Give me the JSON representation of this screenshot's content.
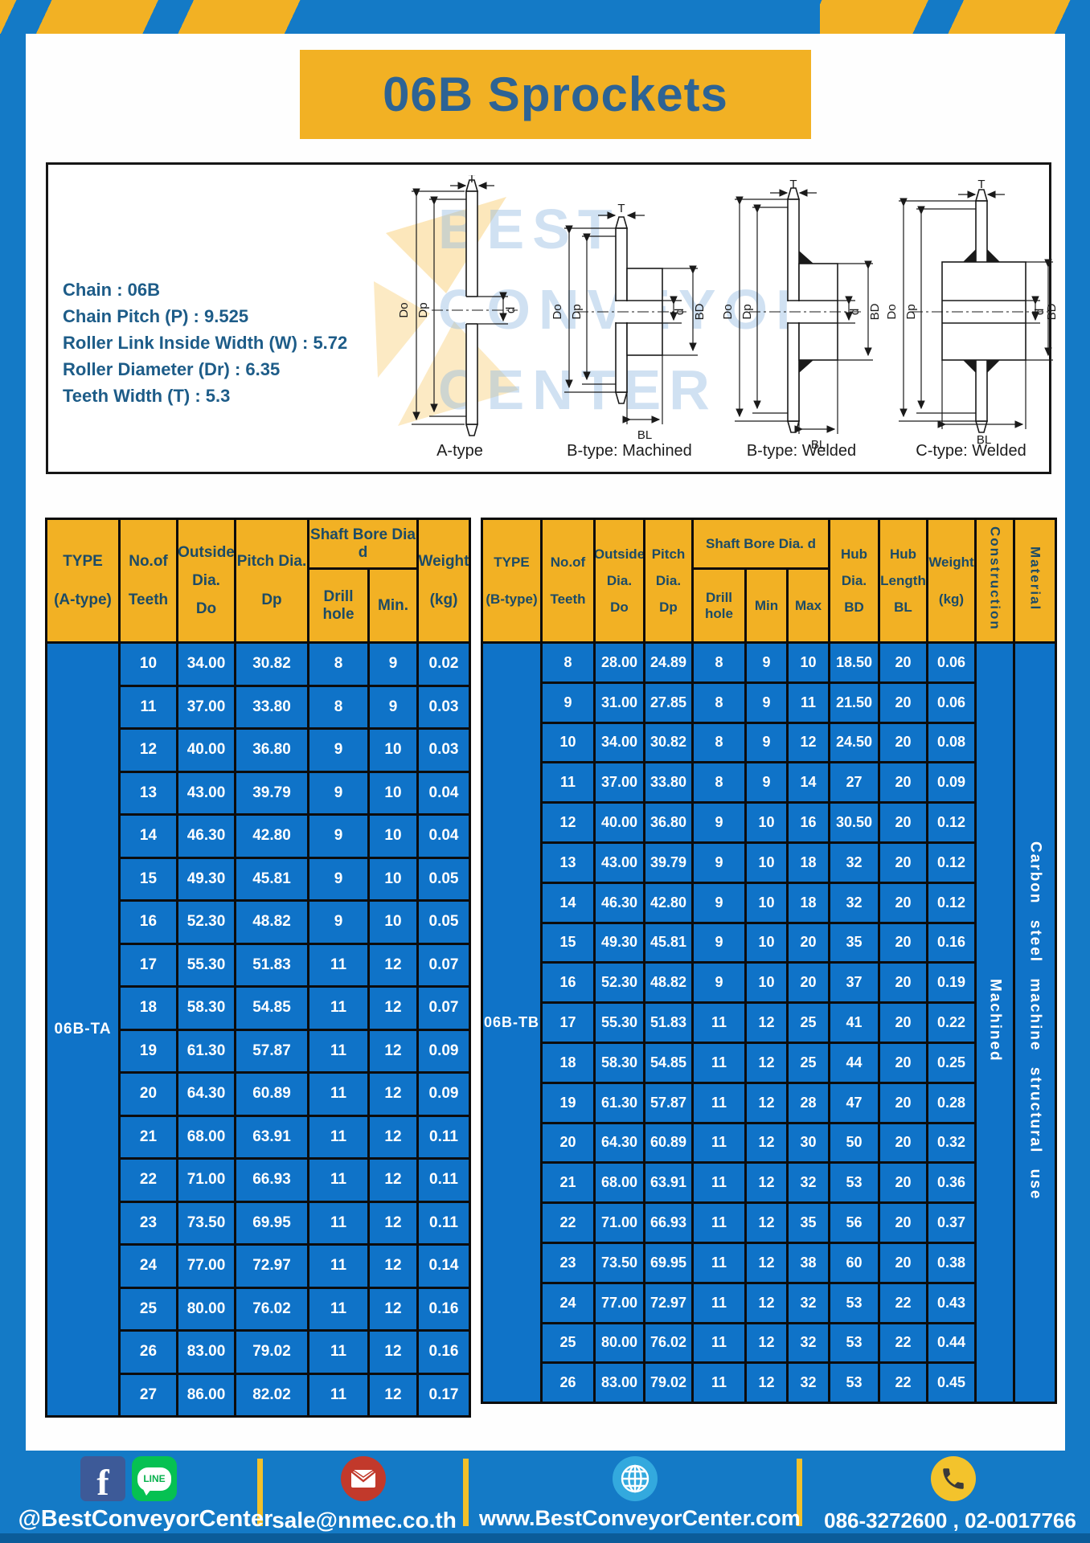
{
  "title": "06B Sprockets",
  "specs": [
    "Chain  : 06B",
    "Chain Pitch (P)  :  9.525",
    "Roller Link Inside Width (W)  :  5.72",
    "Roller Diameter (Dr)  : 6.35",
    "Teeth Width (T)  :  5.3"
  ],
  "diagrams": {
    "watermark_lines": [
      "BEST",
      "CONVEYOR",
      "CENTER"
    ],
    "labels": [
      "A-type",
      "B-type: Machined",
      "B-type: Welded",
      "C-type: Welded"
    ],
    "dims": {
      "t": "T",
      "outer": "Do",
      "pitch": "Dp",
      "bore": "d",
      "hub_dia": "BD",
      "hub_len": "BL"
    }
  },
  "tables": {
    "a": {
      "header": {
        "type1": "TYPE",
        "type2": "(A-type)",
        "teeth1": "No.of",
        "teeth2": "Teeth",
        "out1": "Outside",
        "out2": "Dia.",
        "out3": "Do",
        "pitch1": "Pitch Dia.",
        "pitch2": "Dp",
        "shaft_group": "Shaft Bore Dia d",
        "drill": "Drill hole",
        "min": "Min.",
        "w1": "Weight",
        "w2": "(kg)"
      },
      "type_value": "06B-TA",
      "rows": [
        [
          "10",
          "34.00",
          "30.82",
          "8",
          "9",
          "0.02"
        ],
        [
          "11",
          "37.00",
          "33.80",
          "8",
          "9",
          "0.03"
        ],
        [
          "12",
          "40.00",
          "36.80",
          "9",
          "10",
          "0.03"
        ],
        [
          "13",
          "43.00",
          "39.79",
          "9",
          "10",
          "0.04"
        ],
        [
          "14",
          "46.30",
          "42.80",
          "9",
          "10",
          "0.04"
        ],
        [
          "15",
          "49.30",
          "45.81",
          "9",
          "10",
          "0.05"
        ],
        [
          "16",
          "52.30",
          "48.82",
          "9",
          "10",
          "0.05"
        ],
        [
          "17",
          "55.30",
          "51.83",
          "11",
          "12",
          "0.07"
        ],
        [
          "18",
          "58.30",
          "54.85",
          "11",
          "12",
          "0.07"
        ],
        [
          "19",
          "61.30",
          "57.87",
          "11",
          "12",
          "0.09"
        ],
        [
          "20",
          "64.30",
          "60.89",
          "11",
          "12",
          "0.09"
        ],
        [
          "21",
          "68.00",
          "63.91",
          "11",
          "12",
          "0.11"
        ],
        [
          "22",
          "71.00",
          "66.93",
          "11",
          "12",
          "0.11"
        ],
        [
          "23",
          "73.50",
          "69.95",
          "11",
          "12",
          "0.11"
        ],
        [
          "24",
          "77.00",
          "72.97",
          "11",
          "12",
          "0.14"
        ],
        [
          "25",
          "80.00",
          "76.02",
          "11",
          "12",
          "0.16"
        ],
        [
          "26",
          "83.00",
          "79.02",
          "11",
          "12",
          "0.16"
        ],
        [
          "27",
          "86.00",
          "82.02",
          "11",
          "12",
          "0.17"
        ]
      ]
    },
    "b": {
      "header": {
        "type1": "TYPE",
        "type2": "(B-type)",
        "teeth1": "No.of",
        "teeth2": "Teeth",
        "out1": "Outside",
        "out2": "Dia.",
        "out3": "Do",
        "pitch1": "Pitch",
        "pitch2": "Dia.",
        "pitch3": "Dp",
        "shaft_group": "Shaft Bore Dia. d",
        "drill": "Drill hole",
        "min": "Min",
        "max": "Max",
        "hubd1": "Hub",
        "hubd2": "Dia.",
        "hubd3": "BD",
        "hubl1": "Hub",
        "hubl2": "Length",
        "hubl3": "BL",
        "w1": "Weight",
        "w2": "(kg)",
        "construction": "Construction",
        "material": "Material"
      },
      "type_value": "06B-TB",
      "construction_value": "Machined",
      "material_value": "Carbon steel machine structural use",
      "rows": [
        [
          "8",
          "28.00",
          "24.89",
          "8",
          "9",
          "10",
          "18.50",
          "20",
          "0.06"
        ],
        [
          "9",
          "31.00",
          "27.85",
          "8",
          "9",
          "11",
          "21.50",
          "20",
          "0.06"
        ],
        [
          "10",
          "34.00",
          "30.82",
          "8",
          "9",
          "12",
          "24.50",
          "20",
          "0.08"
        ],
        [
          "11",
          "37.00",
          "33.80",
          "8",
          "9",
          "14",
          "27",
          "20",
          "0.09"
        ],
        [
          "12",
          "40.00",
          "36.80",
          "9",
          "10",
          "16",
          "30.50",
          "20",
          "0.12"
        ],
        [
          "13",
          "43.00",
          "39.79",
          "9",
          "10",
          "18",
          "32",
          "20",
          "0.12"
        ],
        [
          "14",
          "46.30",
          "42.80",
          "9",
          "10",
          "18",
          "32",
          "20",
          "0.12"
        ],
        [
          "15",
          "49.30",
          "45.81",
          "9",
          "10",
          "20",
          "35",
          "20",
          "0.16"
        ],
        [
          "16",
          "52.30",
          "48.82",
          "9",
          "10",
          "20",
          "37",
          "20",
          "0.19"
        ],
        [
          "17",
          "55.30",
          "51.83",
          "11",
          "12",
          "25",
          "41",
          "20",
          "0.22"
        ],
        [
          "18",
          "58.30",
          "54.85",
          "11",
          "12",
          "25",
          "44",
          "20",
          "0.25"
        ],
        [
          "19",
          "61.30",
          "57.87",
          "11",
          "12",
          "28",
          "47",
          "20",
          "0.28"
        ],
        [
          "20",
          "64.30",
          "60.89",
          "11",
          "12",
          "30",
          "50",
          "20",
          "0.32"
        ],
        [
          "21",
          "68.00",
          "63.91",
          "11",
          "12",
          "32",
          "53",
          "20",
          "0.36"
        ],
        [
          "22",
          "71.00",
          "66.93",
          "11",
          "12",
          "35",
          "56",
          "20",
          "0.37"
        ],
        [
          "23",
          "73.50",
          "69.95",
          "11",
          "12",
          "38",
          "60",
          "20",
          "0.38"
        ],
        [
          "24",
          "77.00",
          "72.97",
          "11",
          "12",
          "32",
          "53",
          "22",
          "0.43"
        ],
        [
          "25",
          "80.00",
          "76.02",
          "11",
          "12",
          "32",
          "53",
          "22",
          "0.44"
        ],
        [
          "26",
          "83.00",
          "79.02",
          "11",
          "12",
          "32",
          "53",
          "22",
          "0.45"
        ]
      ]
    }
  },
  "footer": {
    "facebook_letter": "f",
    "line_label": "LINE",
    "social_handle": "@BestConveyorCenter",
    "email": "sale@nmec.co.th",
    "website": "www.BestConveyorCenter.com",
    "phone": "086-3272600 , 02-0017766"
  },
  "colors": {
    "page_blue": "#147AC6",
    "cell_blue": "#0F73C8",
    "yellow": "#F2B124",
    "header_navy": "#1C4B66",
    "title_blue": "#2D6394"
  }
}
